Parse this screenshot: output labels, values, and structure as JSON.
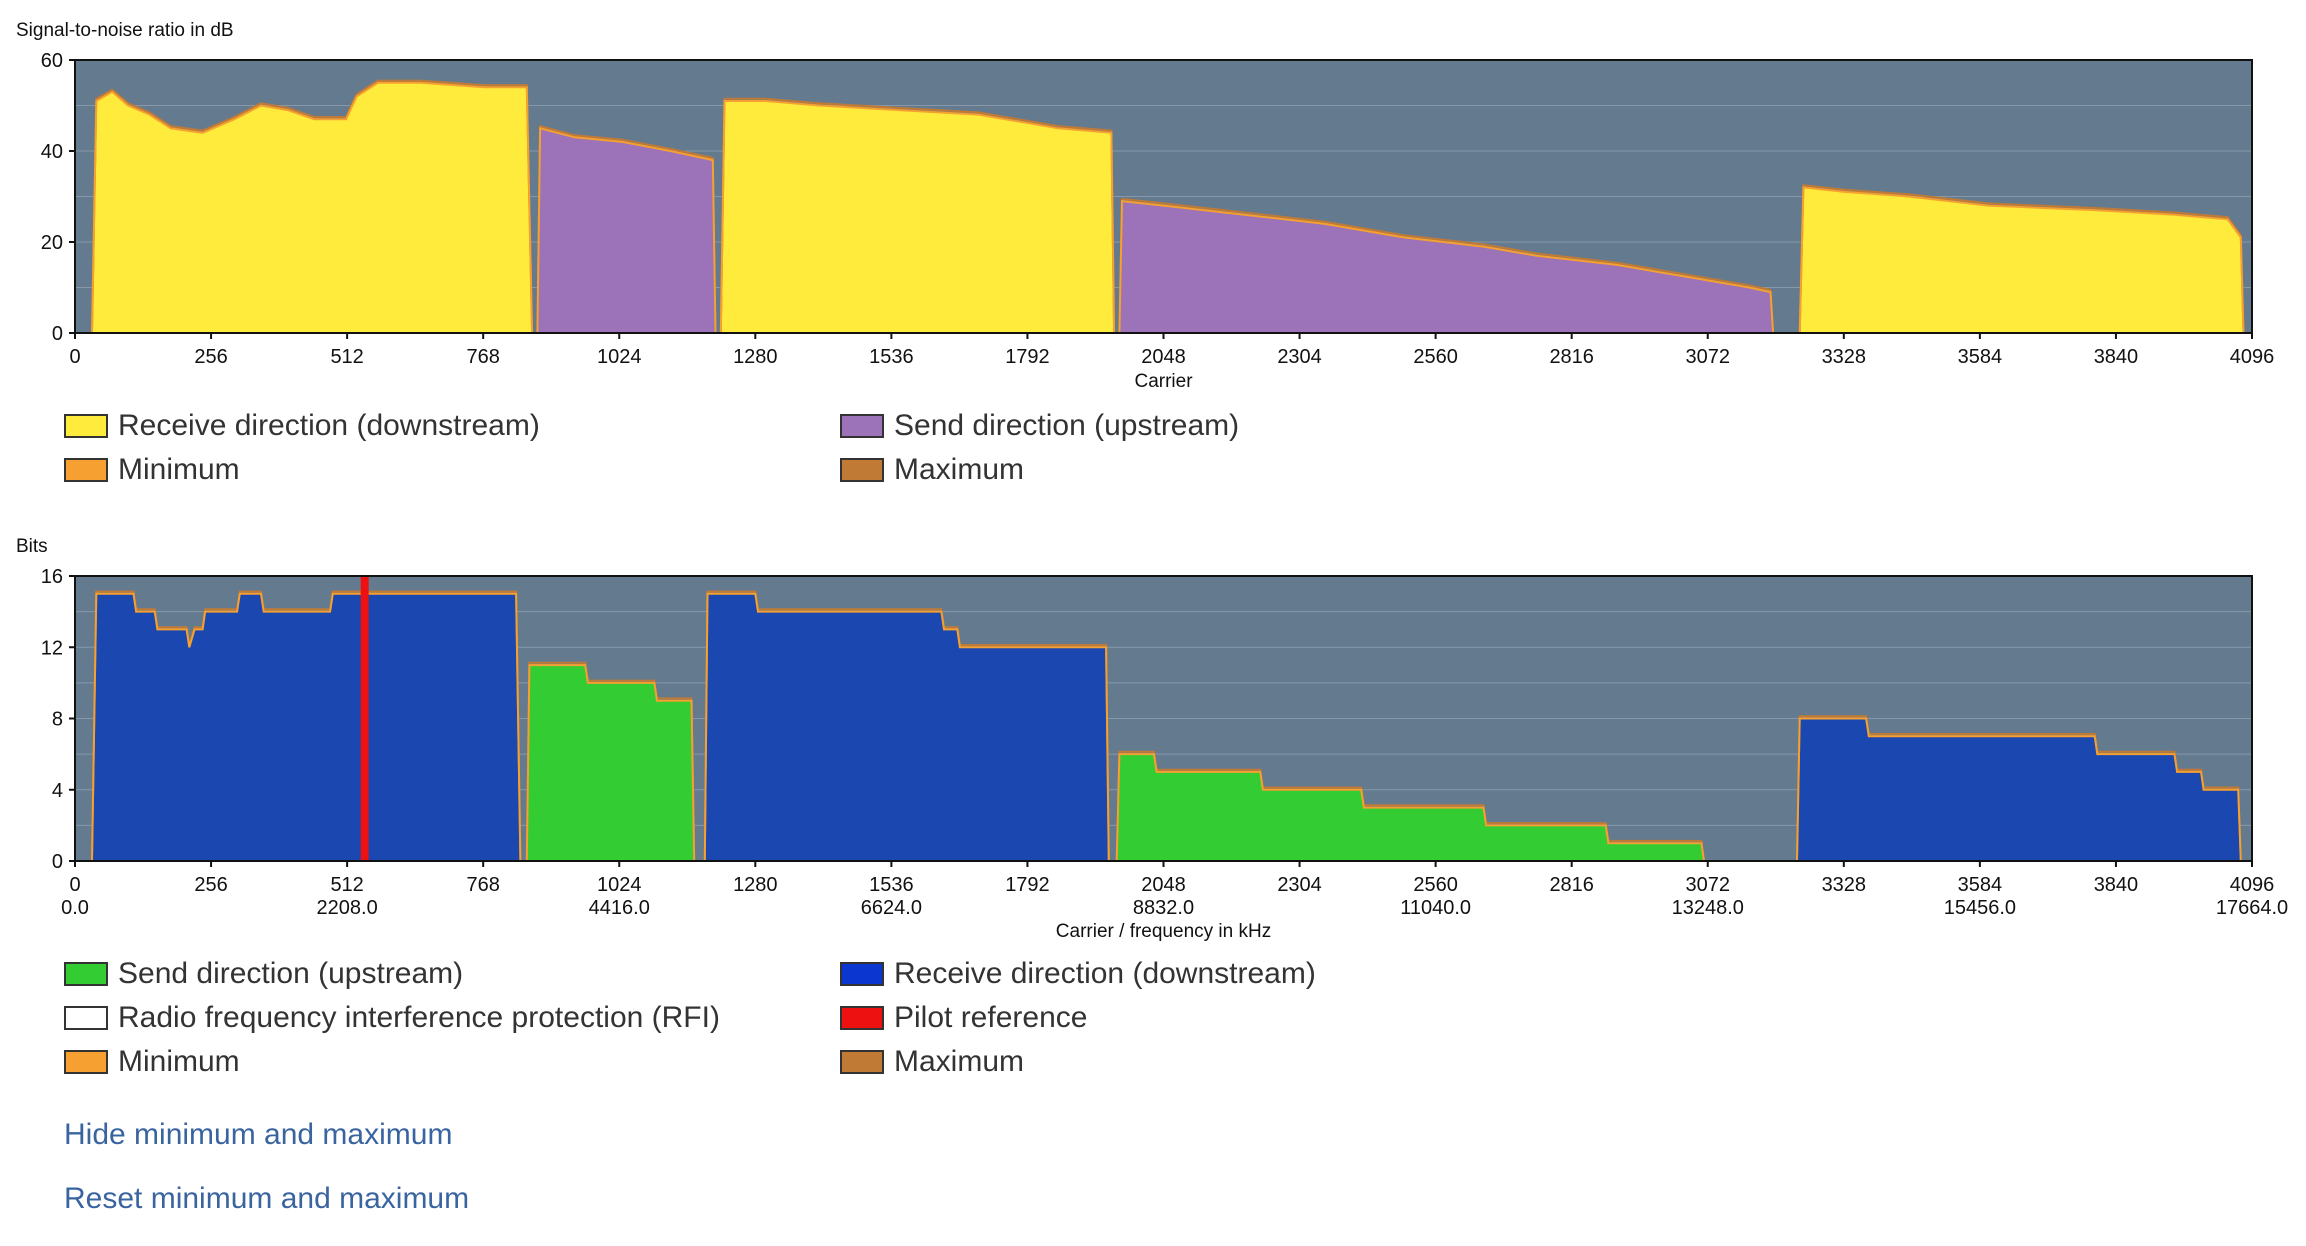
{
  "chart_data": [
    {
      "type": "area",
      "ylabel": "Signal-to-noise ratio in dB",
      "xlabel": "Carrier",
      "xlim": [
        0,
        4096
      ],
      "ylim": [
        0,
        60
      ],
      "xticks": [
        "0",
        "256",
        "512",
        "768",
        "1024",
        "1280",
        "1536",
        "1792",
        "2048",
        "2304",
        "2560",
        "2816",
        "3072",
        "3328",
        "3584",
        "3840",
        "4096"
      ],
      "yticks": [
        "0",
        "20",
        "40",
        "60"
      ],
      "plot_background": "#647a8f",
      "grid": true,
      "legend": [
        {
          "label": "Receive direction (downstream)",
          "color": "#ffeb3b"
        },
        {
          "label": "Send direction (upstream)",
          "color": "#9c72b8"
        },
        {
          "label": "Minimum",
          "color": "#f5a030"
        },
        {
          "label": "Maximum",
          "color": "#c07a35"
        }
      ],
      "series": [
        {
          "name": "Receive direction (downstream)",
          "color": "#ffeb3b",
          "points": [
            [
              32,
              0
            ],
            [
              40,
              51
            ],
            [
              70,
              53
            ],
            [
              100,
              50
            ],
            [
              140,
              48
            ],
            [
              180,
              45
            ],
            [
              240,
              44
            ],
            [
              300,
              47
            ],
            [
              350,
              50
            ],
            [
              400,
              49
            ],
            [
              450,
              47
            ],
            [
              510,
              47
            ],
            [
              530,
              52
            ],
            [
              570,
              55
            ],
            [
              650,
              55
            ],
            [
              770,
              54
            ],
            [
              850,
              54
            ],
            [
              860,
              0
            ]
          ]
        },
        {
          "name": "Send direction (upstream)",
          "color": "#9c72b8",
          "points": [
            [
              870,
              0
            ],
            [
              875,
              45
            ],
            [
              940,
              43
            ],
            [
              1030,
              42
            ],
            [
              1120,
              40
            ],
            [
              1200,
              38
            ],
            [
              1205,
              0
            ]
          ]
        },
        {
          "name": "Receive direction (downstream)",
          "color": "#ffeb3b",
          "points": [
            [
              1215,
              0
            ],
            [
              1222,
              51
            ],
            [
              1300,
              51
            ],
            [
              1400,
              50
            ],
            [
              1550,
              49
            ],
            [
              1700,
              48
            ],
            [
              1850,
              45
            ],
            [
              1950,
              44
            ],
            [
              1955,
              0
            ]
          ]
        },
        {
          "name": "Send direction (upstream)",
          "color": "#9c72b8",
          "points": [
            [
              1965,
              0
            ],
            [
              1970,
              29
            ],
            [
              2048,
              28
            ],
            [
              2200,
              26
            ],
            [
              2350,
              24
            ],
            [
              2500,
              21
            ],
            [
              2650,
              19
            ],
            [
              2750,
              17
            ],
            [
              2900,
              15
            ],
            [
              3050,
              12
            ],
            [
              3150,
              10
            ],
            [
              3190,
              9
            ],
            [
              3195,
              0
            ]
          ]
        },
        {
          "name": "Receive direction (downstream)",
          "color": "#ffeb3b",
          "points": [
            [
              3245,
              0
            ],
            [
              3252,
              32
            ],
            [
              3330,
              31
            ],
            [
              3450,
              30
            ],
            [
              3600,
              28
            ],
            [
              3800,
              27
            ],
            [
              3950,
              26
            ],
            [
              4050,
              25
            ],
            [
              4075,
              21
            ],
            [
              4080,
              0
            ]
          ]
        }
      ]
    },
    {
      "type": "area",
      "ylabel": "Bits",
      "xlabel": "Carrier / frequency in kHz",
      "xlim": [
        0,
        4096
      ],
      "ylim": [
        0,
        16
      ],
      "xticks": [
        "0",
        "256",
        "512",
        "768",
        "1024",
        "1280",
        "1536",
        "1792",
        "2048",
        "2304",
        "2560",
        "2816",
        "3072",
        "3328",
        "3584",
        "3840",
        "4096"
      ],
      "xticks_khz": [
        "0.0",
        "",
        "2208.0",
        "",
        "4416.0",
        "",
        "6624.0",
        "",
        "8832.0",
        "",
        "11040.0",
        "",
        "13248.0",
        "",
        "15456.0",
        "",
        "17664.0"
      ],
      "yticks": [
        "0",
        "4",
        "8",
        "12",
        "16"
      ],
      "plot_background": "#647a8f",
      "grid": true,
      "pilot_carrier": 545,
      "legend": [
        {
          "label": "Send direction (upstream)",
          "color": "#33cc33"
        },
        {
          "label": "Receive direction (downstream)",
          "color": "#0c36d0"
        },
        {
          "label": "Radio frequency interference protection (RFI)",
          "color": "#ffffff"
        },
        {
          "label": "Pilot reference",
          "color": "#ee1111"
        },
        {
          "label": "Minimum",
          "color": "#f5a030"
        },
        {
          "label": "Maximum",
          "color": "#c07a35"
        }
      ],
      "series": [
        {
          "name": "Receive direction (downstream)",
          "color": "#1a47b0",
          "points": [
            [
              32,
              0
            ],
            [
              40,
              15
            ],
            [
              110,
              15
            ],
            [
              115,
              14
            ],
            [
              150,
              14
            ],
            [
              155,
              13
            ],
            [
              210,
              13
            ],
            [
              215,
              12
            ],
            [
              225,
              13
            ],
            [
              240,
              13
            ],
            [
              245,
              14
            ],
            [
              305,
              14
            ],
            [
              310,
              15
            ],
            [
              350,
              15
            ],
            [
              355,
              14
            ],
            [
              480,
              14
            ],
            [
              485,
              15
            ],
            [
              810,
              15
            ],
            [
              830,
              15
            ],
            [
              838,
              0
            ]
          ]
        },
        {
          "name": "Send direction (upstream)",
          "color": "#33cc33",
          "points": [
            [
              850,
              0
            ],
            [
              855,
              11
            ],
            [
              960,
              11
            ],
            [
              965,
              10
            ],
            [
              1090,
              10
            ],
            [
              1095,
              9
            ],
            [
              1160,
              9
            ],
            [
              1165,
              0
            ]
          ]
        },
        {
          "name": "Receive direction (downstream)",
          "color": "#1a47b0",
          "points": [
            [
              1185,
              0
            ],
            [
              1190,
              15
            ],
            [
              1280,
              15
            ],
            [
              1285,
              14
            ],
            [
              1630,
              14
            ],
            [
              1635,
              13
            ],
            [
              1660,
              13
            ],
            [
              1665,
              12
            ],
            [
              1940,
              12
            ],
            [
              1945,
              0
            ]
          ]
        },
        {
          "name": "Send direction (upstream)",
          "color": "#33cc33",
          "points": [
            [
              1960,
              0
            ],
            [
              1965,
              6
            ],
            [
              2030,
              6
            ],
            [
              2035,
              5
            ],
            [
              2230,
              5
            ],
            [
              2235,
              4
            ],
            [
              2420,
              4
            ],
            [
              2425,
              3
            ],
            [
              2650,
              3
            ],
            [
              2655,
              2
            ],
            [
              2880,
              2
            ],
            [
              2885,
              1
            ],
            [
              3060,
              1
            ],
            [
              3065,
              0
            ]
          ]
        },
        {
          "name": "Receive direction (downstream)",
          "color": "#1a47b0",
          "points": [
            [
              3240,
              0
            ],
            [
              3245,
              8
            ],
            [
              3370,
              8
            ],
            [
              3375,
              7
            ],
            [
              3800,
              7
            ],
            [
              3805,
              6
            ],
            [
              3950,
              6
            ],
            [
              3955,
              5
            ],
            [
              4000,
              5
            ],
            [
              4005,
              4
            ],
            [
              4070,
              4
            ],
            [
              4075,
              0
            ]
          ]
        }
      ]
    }
  ],
  "snr_chart": {
    "ylabel": "Signal-to-noise ratio in dB",
    "xlabel": "Carrier",
    "legend": [
      "Receive direction (downstream)",
      "Send direction (upstream)",
      "Minimum",
      "Maximum"
    ]
  },
  "bits_chart": {
    "ylabel": "Bits",
    "xlabel": "Carrier / frequency in kHz",
    "legend": [
      "Send direction (upstream)",
      "Receive direction (downstream)",
      "Radio frequency interference protection (RFI)",
      "Pilot reference",
      "Minimum",
      "Maximum"
    ]
  },
  "links": {
    "hide_minmax": "Hide minimum and maximum",
    "reset_minmax": "Reset minimum and maximum"
  }
}
